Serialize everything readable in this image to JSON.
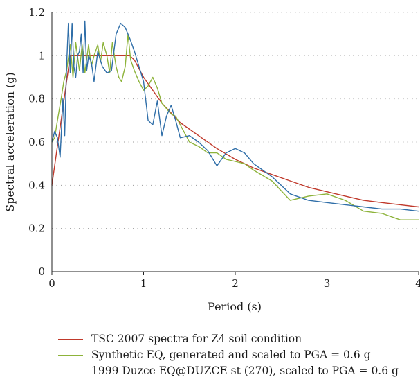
{
  "chart_data": {
    "type": "line",
    "xlabel": "Period (s)",
    "ylabel": "Spectral acceleration (g)",
    "xlim": [
      0,
      4
    ],
    "ylim": [
      0,
      1.2
    ],
    "x_ticks": [
      "0",
      "1",
      "2",
      "3",
      "4"
    ],
    "y_ticks": [
      "0",
      "0.2",
      "0.4",
      "0.6",
      "0.8",
      "1",
      "1.2"
    ],
    "grid": "horizontal dotted",
    "legend_position": "bottom",
    "series": [
      {
        "name": "TSC 2007 spectra for Z4 soil condition",
        "color": "#c0392b",
        "x": [
          0,
          0.05,
          0.1,
          0.15,
          0.2,
          0.3,
          0.4,
          0.5,
          0.6,
          0.7,
          0.8,
          0.85,
          0.9,
          1.0,
          1.2,
          1.4,
          1.6,
          1.8,
          2.0,
          2.2,
          2.4,
          2.6,
          2.8,
          3.0,
          3.2,
          3.4,
          3.6,
          3.8,
          4.0
        ],
        "y": [
          0.4,
          0.55,
          0.7,
          0.85,
          1.0,
          1.0,
          1.0,
          1.0,
          1.0,
          1.0,
          1.0,
          1.0,
          0.98,
          0.9,
          0.78,
          0.69,
          0.63,
          0.57,
          0.52,
          0.48,
          0.45,
          0.42,
          0.39,
          0.37,
          0.35,
          0.33,
          0.32,
          0.31,
          0.3
        ]
      },
      {
        "name": "Synthetic EQ, generated and scaled to PGA = 0.6 g",
        "color": "#8db33a",
        "x": [
          0,
          0.03,
          0.06,
          0.1,
          0.13,
          0.16,
          0.2,
          0.23,
          0.26,
          0.3,
          0.33,
          0.36,
          0.4,
          0.43,
          0.46,
          0.5,
          0.53,
          0.56,
          0.6,
          0.63,
          0.66,
          0.7,
          0.73,
          0.76,
          0.8,
          0.83,
          0.86,
          0.9,
          0.95,
          1.0,
          1.05,
          1.1,
          1.15,
          1.2,
          1.3,
          1.35,
          1.4,
          1.5,
          1.6,
          1.7,
          1.8,
          1.9,
          2.0,
          2.1,
          2.2,
          2.4,
          2.6,
          2.8,
          3.0,
          3.2,
          3.4,
          3.6,
          3.8,
          4.0
        ],
        "y": [
          0.6,
          0.62,
          0.7,
          0.8,
          0.88,
          0.93,
          1.05,
          0.9,
          1.06,
          0.93,
          1.05,
          0.92,
          1.05,
          0.95,
          1.0,
          1.05,
          0.97,
          1.06,
          1.0,
          0.92,
          1.06,
          0.95,
          0.9,
          0.88,
          0.95,
          1.1,
          0.98,
          0.93,
          0.88,
          0.84,
          0.86,
          0.9,
          0.85,
          0.78,
          0.73,
          0.72,
          0.68,
          0.6,
          0.58,
          0.55,
          0.55,
          0.52,
          0.51,
          0.5,
          0.47,
          0.42,
          0.33,
          0.35,
          0.36,
          0.33,
          0.28,
          0.27,
          0.24,
          0.24
        ]
      },
      {
        "name": "1999 Duzce EQ@DUZCE st (270), scaled to PGA = 0.6 g",
        "color": "#2f6ea8",
        "x": [
          0,
          0.03,
          0.06,
          0.09,
          0.12,
          0.14,
          0.16,
          0.18,
          0.2,
          0.22,
          0.24,
          0.26,
          0.28,
          0.3,
          0.32,
          0.34,
          0.36,
          0.38,
          0.4,
          0.43,
          0.46,
          0.5,
          0.55,
          0.6,
          0.65,
          0.7,
          0.75,
          0.8,
          0.85,
          0.9,
          0.95,
          1.0,
          1.05,
          1.1,
          1.15,
          1.2,
          1.25,
          1.3,
          1.35,
          1.4,
          1.5,
          1.6,
          1.7,
          1.8,
          1.9,
          2.0,
          2.1,
          2.2,
          2.4,
          2.6,
          2.8,
          3.0,
          3.2,
          3.4,
          3.6,
          3.8,
          4.0
        ],
        "y": [
          0.6,
          0.65,
          0.62,
          0.53,
          0.8,
          0.63,
          0.95,
          1.15,
          0.92,
          1.15,
          0.95,
          0.9,
          1.0,
          1.02,
          1.1,
          0.92,
          1.16,
          0.93,
          1.0,
          0.97,
          0.88,
          1.02,
          0.95,
          0.92,
          0.93,
          1.1,
          1.15,
          1.13,
          1.08,
          1.02,
          0.95,
          0.88,
          0.7,
          0.68,
          0.79,
          0.63,
          0.72,
          0.77,
          0.7,
          0.62,
          0.63,
          0.6,
          0.56,
          0.49,
          0.55,
          0.57,
          0.55,
          0.5,
          0.44,
          0.36,
          0.33,
          0.32,
          0.31,
          0.3,
          0.29,
          0.29,
          0.28
        ]
      }
    ]
  }
}
